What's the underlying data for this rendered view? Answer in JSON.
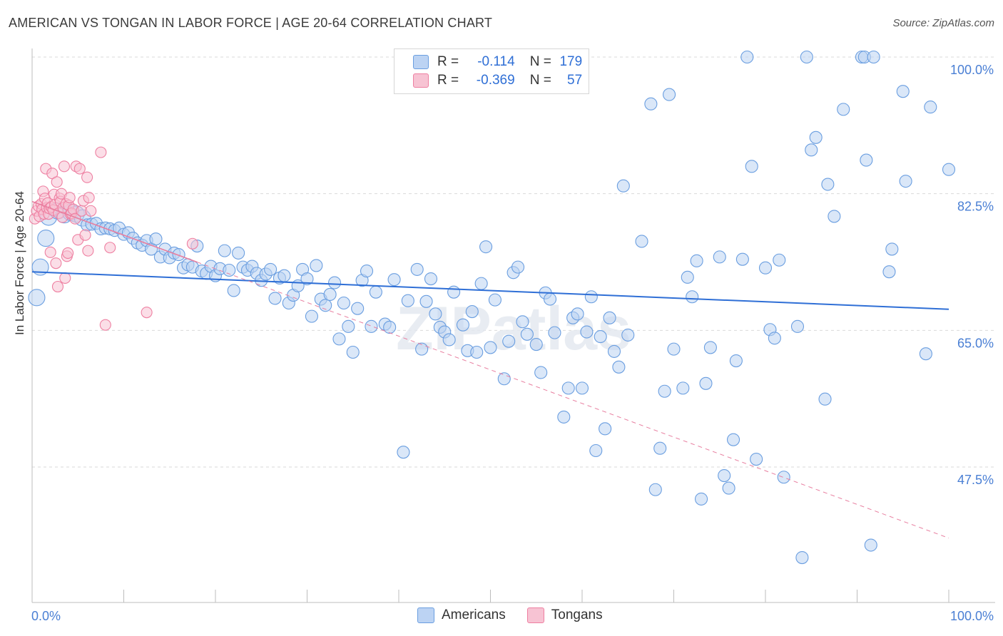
{
  "title": "AMERICAN VS TONGAN IN LABOR FORCE | AGE 20-64 CORRELATION CHART",
  "source": "Source: ZipAtlas.com",
  "legend": {
    "rows": [
      {
        "r_label": "R =",
        "r_value": "-0.114",
        "n_label": "N =",
        "n_value": "179",
        "color": "#a9c7f0"
      },
      {
        "r_label": "R =",
        "r_value": "-0.369",
        "n_label": "N =",
        "n_value": "57",
        "color": "#f6b8cb"
      }
    ]
  },
  "bottom_legend": {
    "americans": "Americans",
    "tongans": "Tongans"
  },
  "chart_data": {
    "type": "scatter",
    "title": "AMERICAN VS TONGAN IN LABOR FORCE | AGE 20-64 CORRELATION CHART",
    "xlabel": "",
    "ylabel": "In Labor Force | Age 20-64",
    "xlim": [
      0,
      100
    ],
    "ylim": [
      30,
      102
    ],
    "x_tick_labels": [
      "0.0%",
      "100.0%"
    ],
    "y_ticks": [
      47.5,
      65.0,
      82.5,
      100.0
    ],
    "y_tick_labels": [
      "47.5%",
      "65.0%",
      "82.5%",
      "100.0%"
    ],
    "watermark": "ZIPatlas",
    "colors": {
      "americans": "#6a9ee0",
      "americans_fill": "#bcd3f3",
      "tongans": "#ee7fa1",
      "tongans_fill": "#f7c3d3",
      "trend_american": "#2f6fd6",
      "trend_tongan": "#e87fa0",
      "axis_text": "#4a7fd4"
    },
    "series": [
      {
        "name": "Americans",
        "trend": {
          "x": [
            0,
            100
          ],
          "y": [
            72.5,
            67.7
          ]
        },
        "points": [
          [
            0.5,
            69.2
          ],
          [
            0.9,
            73.1
          ],
          [
            1.5,
            76.8
          ],
          [
            1.8,
            79.5
          ],
          [
            2.8,
            80.3
          ],
          [
            3.5,
            79.8
          ],
          [
            4.2,
            80.1
          ],
          [
            4.8,
            79.9
          ],
          [
            5.5,
            79.4
          ],
          [
            6.0,
            78.5
          ],
          [
            6.5,
            78.6
          ],
          [
            7.0,
            78.7
          ],
          [
            7.5,
            78.0
          ],
          [
            8.0,
            78.1
          ],
          [
            8.5,
            78.0
          ],
          [
            9.0,
            77.8
          ],
          [
            9.5,
            78.1
          ],
          [
            10.0,
            77.3
          ],
          [
            10.5,
            77.5
          ],
          [
            11.0,
            76.8
          ],
          [
            11.5,
            76.2
          ],
          [
            12.0,
            75.9
          ],
          [
            12.5,
            76.5
          ],
          [
            13.0,
            75.4
          ],
          [
            13.5,
            76.7
          ],
          [
            14.0,
            74.4
          ],
          [
            14.5,
            75.4
          ],
          [
            15.0,
            74.3
          ],
          [
            15.5,
            74.9
          ],
          [
            16.0,
            74.7
          ],
          [
            16.5,
            73.0
          ],
          [
            17.0,
            73.4
          ],
          [
            17.5,
            73.1
          ],
          [
            18.0,
            75.8
          ],
          [
            18.5,
            72.6
          ],
          [
            19.0,
            72.3
          ],
          [
            19.5,
            73.2
          ],
          [
            20.0,
            72.0
          ],
          [
            20.5,
            72.9
          ],
          [
            21.0,
            75.2
          ],
          [
            21.5,
            72.7
          ],
          [
            22.0,
            70.1
          ],
          [
            22.5,
            74.9
          ],
          [
            23.0,
            73.1
          ],
          [
            23.5,
            72.7
          ],
          [
            24.0,
            73.2
          ],
          [
            24.5,
            72.3
          ],
          [
            25.0,
            71.4
          ],
          [
            25.5,
            72.2
          ],
          [
            26.0,
            72.8
          ],
          [
            26.5,
            69.1
          ],
          [
            27.0,
            71.7
          ],
          [
            27.5,
            72.0
          ],
          [
            28.0,
            68.5
          ],
          [
            28.5,
            69.5
          ],
          [
            29.0,
            70.7
          ],
          [
            29.5,
            72.8
          ],
          [
            30.0,
            71.6
          ],
          [
            30.5,
            66.8
          ],
          [
            31.0,
            73.3
          ],
          [
            31.5,
            69.0
          ],
          [
            32.0,
            68.2
          ],
          [
            32.5,
            69.6
          ],
          [
            33.0,
            71.1
          ],
          [
            33.5,
            63.9
          ],
          [
            34.0,
            68.5
          ],
          [
            34.5,
            65.5
          ],
          [
            35.0,
            62.2
          ],
          [
            35.5,
            67.8
          ],
          [
            36.0,
            71.4
          ],
          [
            36.5,
            72.6
          ],
          [
            37.0,
            65.5
          ],
          [
            37.5,
            69.9
          ],
          [
            38.5,
            65.8
          ],
          [
            39.0,
            65.4
          ],
          [
            39.5,
            71.5
          ],
          [
            40.5,
            49.4
          ],
          [
            41.0,
            68.8
          ],
          [
            42.0,
            72.8
          ],
          [
            42.5,
            62.6
          ],
          [
            43.0,
            68.7
          ],
          [
            43.5,
            71.6
          ],
          [
            44.0,
            67.1
          ],
          [
            44.5,
            65.4
          ],
          [
            45.0,
            64.8
          ],
          [
            45.5,
            63.8
          ],
          [
            46.0,
            69.9
          ],
          [
            47.0,
            65.7
          ],
          [
            47.5,
            62.4
          ],
          [
            48.0,
            67.4
          ],
          [
            48.5,
            62.2
          ],
          [
            49.0,
            71.0
          ],
          [
            49.5,
            75.7
          ],
          [
            50.0,
            62.8
          ],
          [
            50.5,
            68.9
          ],
          [
            51.5,
            58.8
          ],
          [
            52.0,
            63.6
          ],
          [
            52.5,
            72.4
          ],
          [
            53.0,
            73.1
          ],
          [
            53.5,
            66.1
          ],
          [
            54.0,
            64.5
          ],
          [
            55.0,
            63.2
          ],
          [
            55.5,
            59.6
          ],
          [
            56.0,
            69.8
          ],
          [
            56.5,
            69.0
          ],
          [
            57.0,
            64.7
          ],
          [
            58.0,
            53.9
          ],
          [
            58.5,
            57.6
          ],
          [
            59.0,
            66.6
          ],
          [
            59.5,
            67.1
          ],
          [
            60.0,
            57.6
          ],
          [
            60.5,
            64.8
          ],
          [
            61.0,
            69.3
          ],
          [
            61.5,
            49.6
          ],
          [
            62.0,
            64.2
          ],
          [
            62.5,
            52.4
          ],
          [
            63.0,
            66.6
          ],
          [
            63.5,
            62.3
          ],
          [
            64.0,
            60.3
          ],
          [
            64.5,
            83.5
          ],
          [
            65.0,
            64.4
          ],
          [
            66.5,
            76.4
          ],
          [
            67.5,
            94.0
          ],
          [
            68.0,
            44.6
          ],
          [
            68.5,
            49.9
          ],
          [
            69.0,
            57.2
          ],
          [
            69.5,
            95.2
          ],
          [
            70.0,
            62.6
          ],
          [
            71.0,
            57.6
          ],
          [
            71.5,
            71.8
          ],
          [
            72.0,
            69.3
          ],
          [
            72.5,
            73.9
          ],
          [
            73.0,
            43.4
          ],
          [
            73.5,
            58.2
          ],
          [
            74.0,
            62.8
          ],
          [
            75.0,
            74.4
          ],
          [
            75.5,
            46.4
          ],
          [
            76.0,
            44.8
          ],
          [
            76.5,
            51.0
          ],
          [
            76.8,
            61.1
          ],
          [
            77.5,
            74.1
          ],
          [
            78.0,
            100.0
          ],
          [
            78.5,
            86.0
          ],
          [
            79.0,
            48.5
          ],
          [
            80.0,
            73.0
          ],
          [
            80.5,
            65.1
          ],
          [
            81.0,
            64.0
          ],
          [
            81.5,
            74.0
          ],
          [
            82.0,
            46.2
          ],
          [
            83.5,
            65.5
          ],
          [
            84.0,
            35.9
          ],
          [
            84.5,
            100.0
          ],
          [
            85.0,
            88.1
          ],
          [
            85.5,
            89.7
          ],
          [
            86.5,
            56.2
          ],
          [
            86.8,
            83.7
          ],
          [
            87.5,
            79.6
          ],
          [
            88.5,
            93.3
          ],
          [
            90.5,
            100.0
          ],
          [
            90.8,
            100.0
          ],
          [
            91.0,
            86.8
          ],
          [
            91.5,
            37.5
          ],
          [
            91.8,
            100.0
          ],
          [
            93.5,
            72.5
          ],
          [
            93.8,
            75.4
          ],
          [
            95.0,
            95.6
          ],
          [
            95.3,
            84.1
          ],
          [
            97.5,
            62.0
          ],
          [
            98.0,
            93.6
          ],
          [
            100.0,
            85.6
          ]
        ]
      },
      {
        "name": "Tongans",
        "trend": {
          "x": [
            0,
            100
          ],
          "y": [
            81.5,
            38.4
          ]
        },
        "points": [
          [
            0.3,
            79.3
          ],
          [
            0.5,
            80.3
          ],
          [
            0.7,
            80.9
          ],
          [
            0.8,
            79.6
          ],
          [
            1.0,
            81.2
          ],
          [
            1.1,
            80.5
          ],
          [
            1.2,
            82.8
          ],
          [
            1.3,
            79.9
          ],
          [
            1.4,
            81.9
          ],
          [
            1.5,
            85.7
          ],
          [
            1.6,
            80.7
          ],
          [
            1.7,
            81.3
          ],
          [
            1.8,
            79.9
          ],
          [
            1.9,
            80.6
          ],
          [
            2.0,
            75.0
          ],
          [
            2.1,
            80.8
          ],
          [
            2.2,
            85.1
          ],
          [
            2.3,
            80.4
          ],
          [
            2.4,
            82.4
          ],
          [
            2.5,
            81.1
          ],
          [
            2.6,
            73.6
          ],
          [
            2.7,
            84.0
          ],
          [
            2.8,
            70.6
          ],
          [
            2.9,
            80.0
          ],
          [
            3.0,
            81.9
          ],
          [
            3.1,
            81.5
          ],
          [
            3.2,
            82.5
          ],
          [
            3.3,
            79.5
          ],
          [
            3.4,
            80.7
          ],
          [
            3.5,
            86.0
          ],
          [
            3.6,
            71.7
          ],
          [
            3.7,
            81.2
          ],
          [
            3.8,
            74.5
          ],
          [
            3.9,
            74.9
          ],
          [
            4.0,
            81.0
          ],
          [
            4.1,
            82.0
          ],
          [
            4.2,
            79.9
          ],
          [
            4.3,
            80.0
          ],
          [
            4.5,
            80.5
          ],
          [
            4.7,
            79.3
          ],
          [
            4.8,
            86.0
          ],
          [
            5.0,
            76.6
          ],
          [
            5.2,
            85.7
          ],
          [
            5.4,
            80.3
          ],
          [
            5.6,
            81.6
          ],
          [
            5.8,
            77.2
          ],
          [
            6.0,
            84.6
          ],
          [
            6.1,
            75.2
          ],
          [
            6.2,
            82.0
          ],
          [
            6.4,
            80.3
          ],
          [
            7.5,
            87.8
          ],
          [
            8.0,
            65.7
          ],
          [
            8.5,
            75.6
          ],
          [
            12.5,
            67.3
          ],
          [
            17.5,
            76.1
          ]
        ]
      }
    ]
  }
}
